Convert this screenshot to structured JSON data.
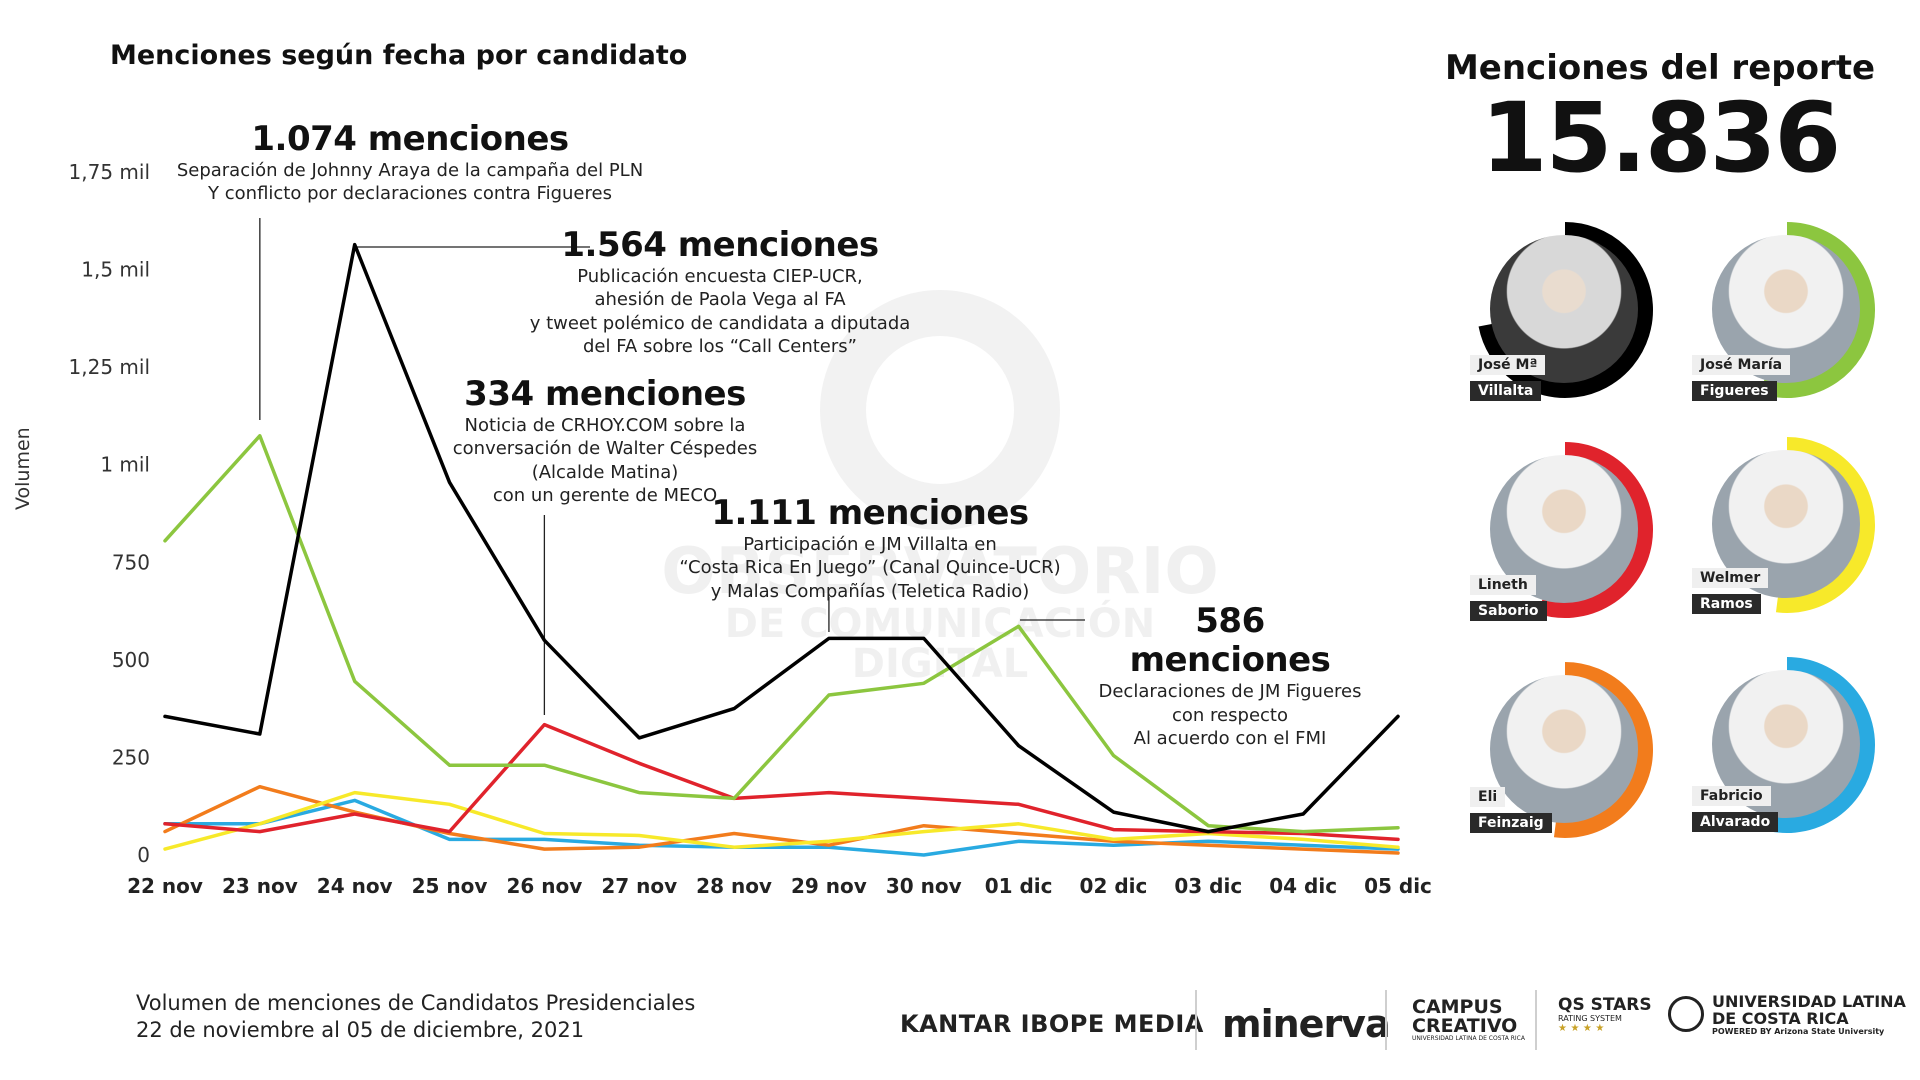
{
  "chart_data": {
    "type": "line",
    "title": "Menciones según fecha por candidato",
    "ylabel": "Volumen",
    "ylim": [
      0,
      1750
    ],
    "yticks": [
      {
        "v": 0,
        "label": "0"
      },
      {
        "v": 250,
        "label": "250"
      },
      {
        "v": 500,
        "label": "500"
      },
      {
        "v": 750,
        "label": "750"
      },
      {
        "v": 1000,
        "label": "1 mil"
      },
      {
        "v": 1250,
        "label": "1,25 mil"
      },
      {
        "v": 1500,
        "label": "1,5 mil"
      },
      {
        "v": 1750,
        "label": "1,75 mil"
      }
    ],
    "categories": [
      "22 nov",
      "23 nov",
      "24 nov",
      "25 nov",
      "26 nov",
      "27 nov",
      "28 nov",
      "29 nov",
      "30 nov",
      "01 dic",
      "02 dic",
      "03 dic",
      "04 dic",
      "05 dic"
    ],
    "series": [
      {
        "name": "José Mª Villalta",
        "color": "#000000",
        "values": [
          355,
          310,
          1564,
          955,
          550,
          300,
          375,
          555,
          555,
          280,
          110,
          60,
          105,
          355
        ]
      },
      {
        "name": "José María Figueres",
        "color": "#8cc63f",
        "values": [
          805,
          1074,
          445,
          230,
          230,
          160,
          145,
          410,
          440,
          586,
          255,
          75,
          60,
          70
        ]
      },
      {
        "name": "Lineth Saborío",
        "color": "#e0232c",
        "values": [
          80,
          60,
          105,
          60,
          334,
          235,
          145,
          160,
          145,
          130,
          65,
          60,
          55,
          40
        ]
      },
      {
        "name": "Welmer Ramos",
        "color": "#f7e92a",
        "values": [
          15,
          80,
          160,
          130,
          55,
          50,
          20,
          35,
          60,
          80,
          40,
          55,
          40,
          20
        ]
      },
      {
        "name": "Eli Feinzaig",
        "color": "#f27c1c",
        "values": [
          60,
          175,
          110,
          55,
          15,
          20,
          55,
          25,
          75,
          55,
          35,
          25,
          15,
          5
        ]
      },
      {
        "name": "Fabricio Alvarado",
        "color": "#29aae1",
        "values": [
          80,
          80,
          140,
          40,
          40,
          25,
          20,
          20,
          0,
          35,
          25,
          35,
          25,
          15
        ]
      }
    ]
  },
  "annotations": [
    {
      "big": "1.074 menciones",
      "lines": [
        "Separación de Johnny Araya de la campaña del PLN",
        "Y conflicto por declaraciones contra Figueres"
      ]
    },
    {
      "big": "1.564 menciones",
      "lines": [
        "Publicación encuesta CIEP-UCR,",
        "ahesión de Paola Vega al FA",
        "y tweet polémico de candidata a diputada",
        "del FA sobre los “Call Centers”"
      ]
    },
    {
      "big": "334 menciones",
      "lines": [
        "Noticia de CRHOY.COM sobre la",
        "conversación de Walter Céspedes",
        "(Alcalde Matina)",
        "con un gerente de MECO"
      ]
    },
    {
      "big": "1.111 menciones",
      "lines": [
        "Participación e JM Villalta en",
        "“Costa Rica En Juego” (Canal Quince-UCR)",
        "y Malas Compañías (Teletica Radio)"
      ]
    },
    {
      "big": "586 menciones",
      "lines": [
        "Declaraciones de JM Figueres",
        "con respecto",
        "Al acuerdo con el FMI"
      ]
    }
  ],
  "report": {
    "title": "Menciones del reporte",
    "total": "15.836"
  },
  "candidates": [
    {
      "first": "José Mª",
      "last": "Villalta",
      "color": "#000000",
      "share": 0.72
    },
    {
      "first": "José María",
      "last": "Figueres",
      "color": "#8cc63f",
      "share": 0.55
    },
    {
      "first": "Lineth",
      "last": "Saborio",
      "color": "#e0232c",
      "share": 0.55
    },
    {
      "first": "Welmer",
      "last": "Ramos",
      "color": "#f7e92a",
      "share": 0.52
    },
    {
      "first": "Eli",
      "last": "Feinzaig",
      "color": "#f27c1c",
      "share": 0.52
    },
    {
      "first": "Fabricio",
      "last": "Alvarado",
      "color": "#29aae1",
      "share": 0.55
    }
  ],
  "watermark": {
    "line1": "OBSERVATORIO",
    "line2": "DE COMUNICACIÓN DIGITAL"
  },
  "footer": {
    "line1": "Volumen de menciones de Candidatos Presidenciales",
    "line2": "22 de noviembre al 05 de diciembre, 2021",
    "logo_kantar": "KANTAR IBOPE MEDIA",
    "logo_minerva": "minerva",
    "logo_campus_1": "CAMPUS",
    "logo_campus_2": "CREATIVO",
    "logo_campus_3": "UNIVERSIDAD LATINA DE COSTA RICA",
    "logo_qs_1": "QS STARS",
    "logo_qs_2": "RATING SYSTEM",
    "logo_qs_3": "★ ★ ★ ★",
    "logo_ulatina_1": "UNIVERSIDAD LATINA",
    "logo_ulatina_2": "DE COSTA RICA",
    "logo_ulatina_3": "POWERED BY Arizona State University"
  }
}
